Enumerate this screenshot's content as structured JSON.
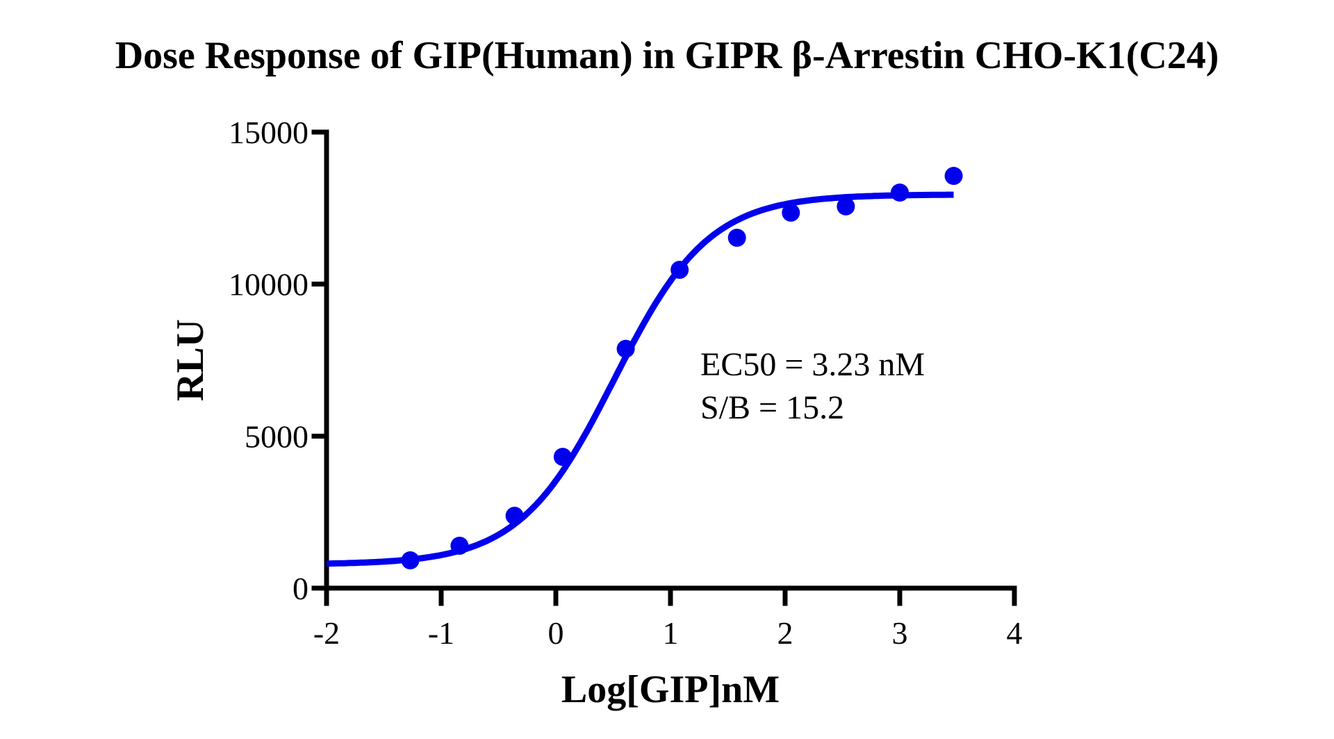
{
  "chart_data": {
    "type": "scatter",
    "title": "Dose Response of GIP(Human) in GIPR β-Arrestin CHO-K1(C24)",
    "xlabel": "Log[GIP]nM",
    "ylabel": "RLU",
    "xlim": [
      -2,
      4
    ],
    "ylim": [
      0,
      15000
    ],
    "x_ticks": [
      -2,
      -1,
      0,
      1,
      2,
      3,
      4
    ],
    "x_tick_labels": [
      "-2",
      "-1",
      "0",
      "1",
      "2",
      "3",
      "4"
    ],
    "y_ticks": [
      0,
      5000,
      10000,
      15000
    ],
    "y_tick_labels": [
      "0",
      "5000",
      "10000",
      "15000"
    ],
    "grid": false,
    "legend": null,
    "series": [
      {
        "name": "GIP(Human)",
        "color": "#0000ee",
        "marker": "circle",
        "x": [
          -1.27,
          -0.84,
          -0.36,
          0.06,
          0.61,
          1.08,
          1.58,
          2.05,
          2.53,
          3.0,
          3.47
        ],
        "y": [
          915,
          1395,
          2380,
          4320,
          7870,
          10470,
          11525,
          12350,
          12555,
          13010,
          13560
        ]
      }
    ],
    "fit": {
      "model": "4PL sigmoidal dose-response",
      "color": "#0000ee",
      "bottom": 780,
      "top": 12950,
      "logEC50": 0.509,
      "hill_slope": 1.05,
      "x_range": [
        -2,
        3.47
      ]
    },
    "annotations": [
      {
        "text": "EC50 = 3.23 nM",
        "x": 1.25,
        "y": 7350
      },
      {
        "text": "S/B = 15.2",
        "x": 1.25,
        "y": 5900
      }
    ]
  },
  "title": "Dose Response of GIP(Human) in GIPR β-Arrestin CHO-K1(C24)",
  "axes": {
    "x_title": "Log[GIP]nM",
    "y_title": "RLU"
  },
  "annotation": {
    "ec50": "EC50 = 3.23 nM",
    "sb": "S/B = 15.2"
  }
}
